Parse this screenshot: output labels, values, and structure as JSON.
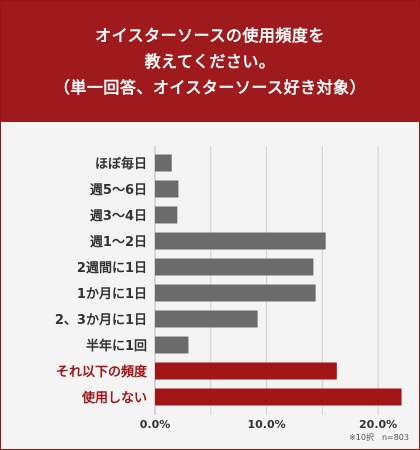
{
  "header": {
    "title_lines": [
      "オイスターソースの使用頻度を",
      "教えてください。",
      "（単一回答、オイスターソース好き対象）"
    ]
  },
  "note": "※10択　n=803",
  "colors": {
    "header_bg": "#9e1a1d",
    "bar_gray": "#6b6b6b",
    "bar_highlight": "#a01518",
    "label_highlight": "#a01518",
    "label_normal": "#333333",
    "background": "#f4f4f4"
  },
  "chart_data": {
    "type": "bar",
    "orientation": "horizontal",
    "categories": [
      "ほぼ毎日",
      "週5〜6日",
      "週3〜4日",
      "週1〜2日",
      "2週間に1日",
      "1か月に1日",
      "2、3か月に1日",
      "半年に1回",
      "それ以下の頻度",
      "使用しない"
    ],
    "values": [
      1.5,
      2.1,
      2.0,
      15.3,
      14.2,
      14.4,
      9.2,
      3.0,
      16.3,
      22.1
    ],
    "highlighted": [
      false,
      false,
      false,
      false,
      false,
      false,
      false,
      false,
      true,
      true
    ],
    "xlim": [
      0,
      22.5
    ],
    "xticks": [
      0,
      10,
      20
    ],
    "xtick_labels": [
      "0.0%",
      "10.0%",
      "20.0%"
    ],
    "title": "",
    "xlabel": "",
    "ylabel": "",
    "grid": "vertical"
  }
}
